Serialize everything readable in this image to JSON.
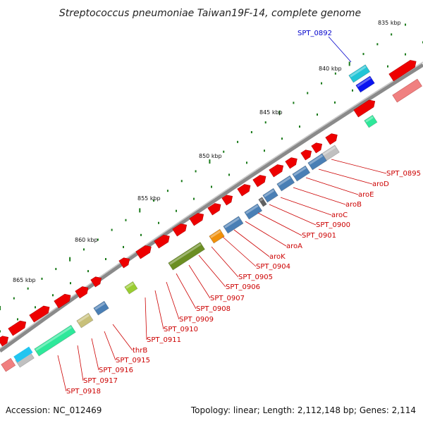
{
  "title": "Streptococcus pneumoniae Taiwan19F-14, complete genome",
  "accession_text": "Accession: NC_012469",
  "summary_text": "Topology: linear; Length: 2,112,148 bp; Genes: 2,114",
  "colors": {
    "label_red": "#cc0000",
    "label_blue": "#0000cc",
    "backbone": "#8a8a8a",
    "tick": "#1a7a1a"
  },
  "ruler_ticks": [
    "835 kbp",
    "840 kbp",
    "845 kbp",
    "850 kbp",
    "855 kbp",
    "860 kbp",
    "865 kbp"
  ],
  "genes": [
    {
      "name": "SPT_0892",
      "label_color": "blue",
      "fill": "#22c5d6"
    },
    {
      "name": "SPT_0895",
      "label_color": "red",
      "fill": "#c0c0c0"
    },
    {
      "name": "aroD",
      "label_color": "red",
      "fill": "#4a7fb5"
    },
    {
      "name": "aroE",
      "label_color": "red",
      "fill": "#4a7fb5"
    },
    {
      "name": "aroB",
      "label_color": "red",
      "fill": "#4a7fb5"
    },
    {
      "name": "aroC",
      "label_color": "red",
      "fill": "#4a7fb5"
    },
    {
      "name": "SPT_0900",
      "label_color": "red",
      "fill": "#606060"
    },
    {
      "name": "SPT_0901",
      "label_color": "red",
      "fill": "#4a7fb5"
    },
    {
      "name": "aroA",
      "label_color": "red",
      "fill": "#4a7fb5"
    },
    {
      "name": "aroK",
      "label_color": "red",
      "fill": "#4a7fb5"
    },
    {
      "name": "SPT_0904",
      "label_color": "red",
      "fill": "#4a7fb5"
    },
    {
      "name": "SPT_0905",
      "label_color": "red",
      "fill": "#4a7fb5"
    },
    {
      "name": "SPT_0906",
      "label_color": "red",
      "fill": "#f0900a"
    },
    {
      "name": "SPT_0907",
      "label_color": "red",
      "fill": "#f0900a"
    },
    {
      "name": "SPT_0908",
      "label_color": "red",
      "fill": "#6b8e23"
    },
    {
      "name": "SPT_0909",
      "label_color": "red",
      "fill": "#6b8e23"
    },
    {
      "name": "SPT_0910",
      "label_color": "red",
      "fill": "#6b8e23"
    },
    {
      "name": "SPT_0911",
      "label_color": "red",
      "fill": "#6b8e23"
    },
    {
      "name": "thrB",
      "label_color": "red",
      "fill": "#9acd32"
    },
    {
      "name": "SPT_0915",
      "label_color": "red",
      "fill": "#4a7fb5"
    },
    {
      "name": "SPT_0916",
      "label_color": "red",
      "fill": "#c8c07a"
    },
    {
      "name": "SPT_0917",
      "label_color": "red",
      "fill": "#2ee89a"
    },
    {
      "name": "SPT_0918",
      "label_color": "red",
      "fill": "#2ee89a"
    }
  ]
}
